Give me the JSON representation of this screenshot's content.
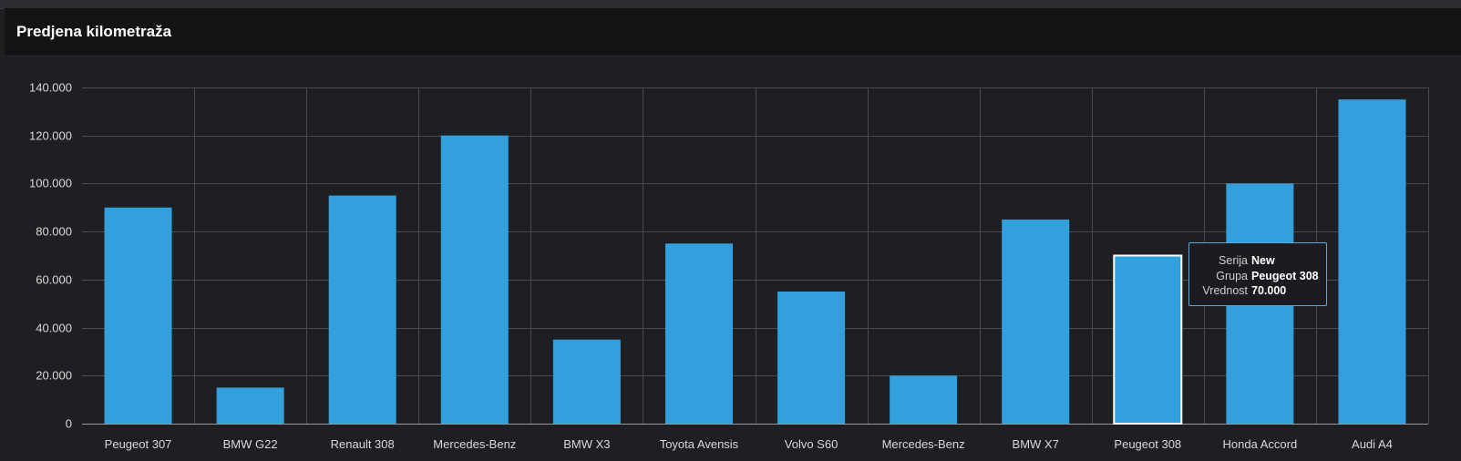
{
  "panel": {
    "title": "Predjena kilometraža"
  },
  "chart_data": {
    "type": "bar",
    "title": "Predjena kilometraža",
    "categories": [
      "Peugeot 307",
      "BMW G22",
      "Renault 308",
      "Mercedes-Benz",
      "BMW X3",
      "Toyota Avensis",
      "Volvo S60",
      "Mercedes-Benz",
      "BMW X7",
      "Peugeot 308",
      "Honda Accord",
      "Audi A4"
    ],
    "series": [
      {
        "name": "New",
        "values": [
          90000,
          15000,
          95000,
          120000,
          35000,
          75000,
          55000,
          20000,
          85000,
          70000,
          100000,
          135000
        ]
      }
    ],
    "yticks": [
      "0",
      "20.000",
      "40.000",
      "60.000",
      "80.000",
      "100.000",
      "120.000",
      "140.000"
    ],
    "ylim": [
      0,
      140000
    ],
    "xlabel": "",
    "ylabel": "",
    "grid": true,
    "bar_color": "#33a0de",
    "highlight_index": 9,
    "highlight_stroke": "#ffffff"
  },
  "tooltip": {
    "rows": [
      {
        "key": "Serija",
        "value": "New"
      },
      {
        "key": "Grupa",
        "value": "Peugeot 308"
      },
      {
        "key": "Vrednost",
        "value": "70.000"
      }
    ],
    "border_color": "#5fa8d6"
  }
}
